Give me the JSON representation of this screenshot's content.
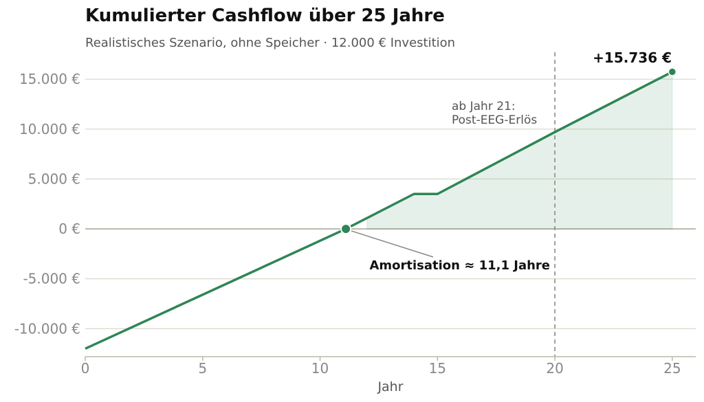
{
  "colors": {
    "line": "#2e8555",
    "fill": "#2e8555",
    "grid": "#dcdccf",
    "zero_line": "#b9b9a8",
    "axis": "#b9b9a8",
    "tick_text": "#888888",
    "vline": "#888888",
    "annotation_text": "#555555",
    "arrow": "#888888"
  },
  "chart_data": {
    "type": "area",
    "title": "Kumulierter Cashflow über 25 Jahre",
    "subtitle": "Realistisches Szenario, ohne Speicher · 12.000 € Investition",
    "xlabel": "Jahr",
    "ylabel": "",
    "xlim": [
      0,
      26
    ],
    "ylim": [
      -12800,
      17700
    ],
    "x_ticks": [
      0,
      5,
      10,
      15,
      20,
      25
    ],
    "x_tick_labels": [
      "0",
      "5",
      "10",
      "15",
      "20",
      "25"
    ],
    "y_ticks": [
      -10000,
      -5000,
      0,
      5000,
      10000,
      15000
    ],
    "y_tick_labels": [
      "-10.000 €",
      "-5.000 €",
      "0 €",
      "5.000 €",
      "10.000 €",
      "15.000 €"
    ],
    "grid": true,
    "series": [
      {
        "x": [
          0,
          11.1,
          14,
          15,
          20,
          25
        ],
        "y": [
          -12000,
          0,
          3500,
          3500,
          9700,
          15736
        ]
      }
    ],
    "fill_positive_from_x": 12,
    "vertical_line_x": 20,
    "annotations": {
      "end_label": "+15.736 €",
      "post_eeg_line1": "ab Jahr 21:",
      "post_eeg_line2": "Post-EEG-Erlös",
      "amortisation_label": "Amortisation ≈ 11,1 Jahre",
      "amortisation_x": 11.1
    }
  }
}
